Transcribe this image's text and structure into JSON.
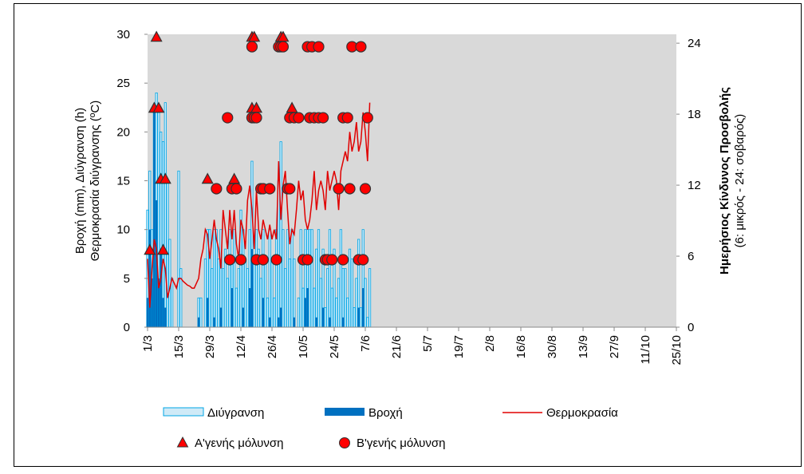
{
  "chart_data": {
    "type": "combo",
    "y_label": [
      "Βροχή (mm), Διύγρανση (h)",
      "Θερμοκρασία διύγρανσης (ºC)"
    ],
    "y2_label": [
      "Ημερήσιος Κίνδυνος Προσβολής",
      "(6: μικρός - 24: σοβαρός)"
    ],
    "xlim": [
      0,
      238
    ],
    "xticks": [
      {
        "value": 0,
        "label": "1/3"
      },
      {
        "value": 14,
        "label": "15/3"
      },
      {
        "value": 28,
        "label": "29/3"
      },
      {
        "value": 42,
        "label": "12/4"
      },
      {
        "value": 56,
        "label": "26/4"
      },
      {
        "value": 70,
        "label": "10/5"
      },
      {
        "value": 84,
        "label": "24/5"
      },
      {
        "value": 98,
        "label": "7/6"
      },
      {
        "value": 112,
        "label": "21/6"
      },
      {
        "value": 126,
        "label": "5/7"
      },
      {
        "value": 140,
        "label": "19/7"
      },
      {
        "value": 154,
        "label": "2/8"
      },
      {
        "value": 168,
        "label": "16/8"
      },
      {
        "value": 182,
        "label": "30/8"
      },
      {
        "value": 196,
        "label": "13/9"
      },
      {
        "value": 210,
        "label": "27/9"
      },
      {
        "value": 224,
        "label": "11/10"
      },
      {
        "value": 238,
        "label": "25/10"
      }
    ],
    "ylim": [
      0,
      30
    ],
    "yticks": [
      0,
      5,
      10,
      15,
      20,
      25,
      30
    ],
    "y2lim": [
      0,
      24.75
    ],
    "y2ticks": [
      0,
      6,
      12,
      18,
      24
    ],
    "x": [
      0,
      1,
      2,
      3,
      4,
      5,
      6,
      7,
      8,
      9,
      10,
      11,
      12,
      13,
      14,
      15,
      16,
      17,
      18,
      19,
      20,
      21,
      22,
      23,
      24,
      25,
      26,
      27,
      28,
      29,
      30,
      31,
      32,
      33,
      34,
      35,
      36,
      37,
      38,
      39,
      40,
      41,
      42,
      43,
      44,
      45,
      46,
      47,
      48,
      49,
      50,
      51,
      52,
      53,
      54,
      55,
      56,
      57,
      58,
      59,
      60,
      61,
      62,
      63,
      64,
      65,
      66,
      67,
      68,
      69,
      70,
      71,
      72,
      73,
      74,
      75,
      76,
      77,
      78,
      79,
      80,
      81,
      82,
      83,
      84,
      85,
      86,
      87,
      88,
      89,
      90,
      91,
      92,
      93,
      94,
      95,
      96,
      97,
      98,
      99,
      100
    ],
    "series": [
      {
        "name": "Διύγρανση",
        "type": "bar",
        "color": "#00a6e6",
        "fill": "#cfeaf7",
        "values": [
          12,
          16,
          10,
          22,
          24,
          22,
          20,
          19,
          23,
          15,
          9,
          5,
          0,
          0,
          16,
          6,
          0,
          0,
          0,
          0,
          0,
          0,
          0,
          3,
          3,
          0,
          7,
          10,
          10,
          6,
          10,
          10,
          7,
          10,
          6,
          8,
          5,
          10,
          7,
          10,
          4,
          6,
          12,
          10,
          7,
          6,
          10,
          17,
          7,
          10,
          8,
          5,
          10,
          7,
          3,
          10,
          7,
          3,
          10,
          15,
          19,
          10,
          6,
          10,
          7,
          10,
          7,
          0,
          3,
          10,
          4,
          10,
          10,
          10,
          10,
          4,
          8,
          10,
          5,
          8,
          2,
          6,
          10,
          4,
          8,
          3,
          5,
          10,
          6,
          6,
          3,
          8,
          7,
          2,
          5,
          9,
          2,
          10,
          5,
          1,
          6
        ]
      },
      {
        "name": "Βροχή",
        "type": "bar",
        "color": "#0070c0",
        "values": [
          3,
          10,
          5,
          22,
          13,
          5,
          8,
          3,
          2,
          0,
          0,
          0,
          0,
          0,
          0,
          0,
          0,
          0,
          0,
          0,
          0,
          0,
          0,
          1,
          0,
          0,
          0,
          3,
          0,
          0,
          1,
          0,
          0,
          2,
          0,
          0,
          0,
          0,
          4,
          0,
          0,
          0,
          0,
          2,
          0,
          0,
          4,
          8,
          0,
          0,
          0,
          0,
          3,
          0,
          0,
          1,
          0,
          0,
          0,
          1,
          2,
          0,
          0,
          0,
          0,
          0,
          1,
          0,
          0,
          0,
          0,
          3,
          4,
          0,
          0,
          0,
          1,
          0,
          0,
          2,
          0,
          0,
          1,
          0,
          0,
          0,
          0,
          0,
          1,
          0,
          0,
          0,
          0,
          0,
          0,
          2,
          0,
          4,
          0,
          0,
          0
        ]
      },
      {
        "name": "Θερμοκρασία",
        "type": "line",
        "color": "#e00000",
        "values": [
          7,
          2,
          6,
          9,
          8,
          4,
          5,
          7,
          6,
          3,
          4,
          5,
          4.5,
          4,
          5,
          5,
          4.7,
          4.5,
          4.3,
          4.2,
          4,
          4,
          4.5,
          5,
          7,
          8,
          10,
          9.5,
          7,
          9,
          11,
          9,
          8,
          6,
          12,
          10,
          8,
          12,
          9,
          12,
          8.5,
          7,
          11,
          10,
          8,
          13,
          14.5,
          12,
          8,
          14,
          10,
          9,
          11,
          10,
          9,
          10.5,
          9,
          10,
          9,
          17,
          11,
          14.5,
          16,
          12,
          8.5,
          10,
          9.5,
          12,
          15,
          13,
          14,
          11,
          10,
          11,
          13,
          16,
          12,
          14,
          15,
          14,
          12,
          16,
          14,
          15,
          16,
          15,
          12,
          16,
          17,
          18,
          17,
          20,
          18,
          19,
          21,
          18,
          19,
          22,
          20,
          17,
          23
        ]
      },
      {
        "name": "Α'γενής μόλυνση",
        "type": "scatter",
        "marker": "triangle",
        "axis": "y2",
        "color": "#ff0000",
        "x": [
          1,
          4,
          3,
          5,
          6,
          8,
          7,
          27,
          39,
          47,
          48,
          60,
          61,
          47,
          49,
          65
        ],
        "values": [
          6.5,
          24.5,
          18.5,
          18.5,
          12.5,
          12.5,
          6.5,
          12.5,
          12.5,
          24.5,
          24.5,
          24.5,
          24.5,
          18.5,
          18.5,
          18.5
        ]
      },
      {
        "name": "Β'γενής μόλυνση",
        "type": "scatter",
        "marker": "circle",
        "axis": "y2",
        "color": "#ff0000",
        "x": [
          47,
          59,
          60,
          61,
          72,
          74,
          77,
          92,
          96,
          36,
          47,
          48,
          49,
          64,
          66,
          68,
          73,
          75,
          77,
          79,
          88,
          90,
          99,
          31,
          38,
          40,
          51,
          52,
          55,
          63,
          64,
          86,
          91,
          98,
          37,
          42,
          49,
          52,
          58,
          70,
          72,
          80,
          81,
          83,
          88,
          95,
          97
        ],
        "values": [
          23.7,
          23.7,
          23.7,
          23.7,
          23.7,
          23.7,
          23.7,
          23.7,
          23.7,
          17.7,
          17.7,
          17.7,
          17.7,
          17.7,
          17.7,
          17.7,
          17.7,
          17.7,
          17.7,
          17.7,
          17.7,
          17.7,
          17.7,
          11.7,
          11.7,
          11.7,
          11.7,
          11.7,
          11.7,
          11.7,
          11.7,
          11.7,
          11.7,
          11.7,
          5.7,
          5.7,
          5.7,
          5.7,
          5.7,
          5.7,
          5.7,
          5.7,
          5.7,
          5.7,
          5.7,
          5.7,
          5.7
        ]
      }
    ]
  }
}
